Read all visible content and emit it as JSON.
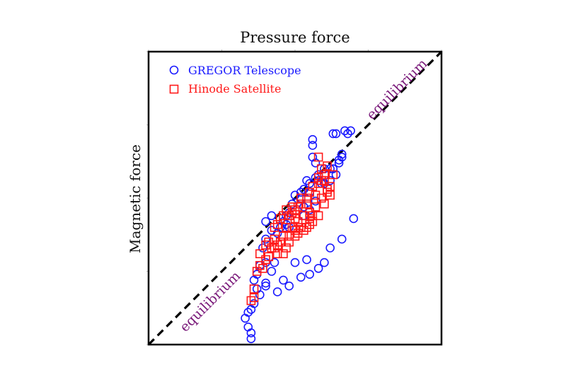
{
  "chart_data": {
    "type": "scatter",
    "title": "Pressure force",
    "xlabel": "",
    "ylabel": "Magnetic force",
    "xlim": [
      0,
      100
    ],
    "ylim": [
      0,
      100
    ],
    "grid": false,
    "legend_position": "top-left",
    "reference_line": {
      "label": "equilibrium",
      "style": "dashed",
      "color": "#000000",
      "from": [
        0,
        0
      ],
      "to": [
        100,
        100
      ]
    },
    "annotations": [
      {
        "text": "equilibrium",
        "position": "upper-right along line",
        "color": "#7a1a7a"
      },
      {
        "text": "equilibrium",
        "position": "lower-left along line",
        "color": "#7a1a7a"
      }
    ],
    "series": [
      {
        "name": "GREGOR Telescope",
        "marker": "circle",
        "color": "#1a1aff",
        "points": [
          [
            70,
            43
          ],
          [
            66,
            36
          ],
          [
            62,
            33
          ],
          [
            60,
            28
          ],
          [
            58,
            26
          ],
          [
            55,
            24
          ],
          [
            54,
            29
          ],
          [
            52,
            23
          ],
          [
            50,
            28
          ],
          [
            48,
            20
          ],
          [
            46,
            22
          ],
          [
            44,
            18
          ],
          [
            42,
            25
          ],
          [
            40,
            20
          ],
          [
            38,
            17
          ],
          [
            36,
            14
          ],
          [
            35,
            12
          ],
          [
            34,
            11
          ],
          [
            33,
            9
          ],
          [
            34,
            6
          ],
          [
            35,
            4
          ],
          [
            35,
            2
          ],
          [
            63,
            72
          ],
          [
            64,
            72
          ],
          [
            67,
            73
          ],
          [
            68,
            72
          ],
          [
            69,
            73
          ],
          [
            56,
            70
          ],
          [
            56,
            68
          ],
          [
            56,
            64
          ],
          [
            57,
            62
          ],
          [
            60,
            60
          ],
          [
            62,
            60
          ],
          [
            63,
            60
          ],
          [
            65,
            62
          ],
          [
            65,
            63
          ],
          [
            66,
            64
          ],
          [
            66,
            65
          ],
          [
            64,
            58
          ],
          [
            62,
            56
          ],
          [
            60,
            55
          ],
          [
            59,
            55
          ],
          [
            54,
            56
          ],
          [
            53,
            53
          ],
          [
            52,
            52
          ],
          [
            50,
            51
          ],
          [
            52,
            50
          ],
          [
            55,
            52
          ],
          [
            55,
            55
          ],
          [
            57,
            57
          ],
          [
            58,
            58
          ],
          [
            58,
            56
          ],
          [
            55,
            46
          ],
          [
            53,
            44
          ],
          [
            49,
            48
          ],
          [
            48,
            45
          ],
          [
            47,
            44
          ],
          [
            46,
            42
          ],
          [
            47,
            41
          ],
          [
            48,
            40
          ],
          [
            45,
            40
          ],
          [
            44,
            38
          ],
          [
            42,
            39
          ],
          [
            40,
            36
          ],
          [
            39,
            33
          ],
          [
            40,
            28
          ],
          [
            38,
            27
          ],
          [
            37,
            24
          ],
          [
            36,
            22
          ],
          [
            37,
            19
          ],
          [
            40,
            21
          ],
          [
            43,
            28
          ],
          [
            40,
            42
          ],
          [
            42,
            44
          ],
          [
            57,
            49
          ],
          [
            53,
            47
          ]
        ]
      },
      {
        "name": "Hinode Satellite",
        "marker": "square",
        "color": "#ff1a1a",
        "points": [
          [
            58,
            64
          ],
          [
            59,
            60
          ],
          [
            61,
            61
          ],
          [
            63,
            58
          ],
          [
            60,
            58
          ],
          [
            62,
            54
          ],
          [
            61,
            53
          ],
          [
            59,
            50
          ],
          [
            57,
            51
          ],
          [
            57,
            47
          ],
          [
            55,
            45
          ],
          [
            55,
            43
          ],
          [
            54,
            48
          ],
          [
            53,
            44
          ],
          [
            51,
            42
          ],
          [
            50,
            43
          ],
          [
            52,
            40
          ],
          [
            50,
            39
          ],
          [
            49,
            40
          ],
          [
            48,
            37
          ],
          [
            46,
            37
          ],
          [
            45,
            35
          ],
          [
            43,
            36
          ],
          [
            44,
            34
          ],
          [
            42,
            33
          ],
          [
            41,
            30
          ],
          [
            40,
            29
          ],
          [
            38,
            31
          ],
          [
            38,
            27
          ],
          [
            37,
            25
          ],
          [
            39,
            26
          ],
          [
            43,
            33
          ],
          [
            44,
            31
          ],
          [
            46,
            31
          ],
          [
            47,
            33
          ],
          [
            48,
            35
          ],
          [
            45,
            43
          ],
          [
            46,
            44
          ],
          [
            47,
            46
          ],
          [
            49,
            47
          ],
          [
            51,
            47
          ],
          [
            52,
            48
          ],
          [
            52,
            50
          ],
          [
            54,
            50
          ],
          [
            55,
            52
          ],
          [
            56,
            54
          ],
          [
            58,
            55
          ],
          [
            60,
            56
          ],
          [
            61,
            52
          ],
          [
            62,
            51
          ],
          [
            60,
            48
          ],
          [
            58,
            44
          ],
          [
            56,
            44
          ],
          [
            50,
            46
          ],
          [
            49,
            45
          ],
          [
            48,
            44
          ],
          [
            47,
            40
          ],
          [
            50,
            37
          ],
          [
            51,
            38
          ],
          [
            53,
            39
          ],
          [
            54,
            40
          ],
          [
            55,
            41
          ],
          [
            56,
            42
          ],
          [
            35,
            15
          ],
          [
            36,
            16
          ],
          [
            36,
            19
          ],
          [
            40,
            34
          ],
          [
            41,
            35
          ],
          [
            43,
            40
          ],
          [
            44,
            41
          ],
          [
            58,
            57
          ],
          [
            59,
            56
          ]
        ]
      }
    ]
  }
}
